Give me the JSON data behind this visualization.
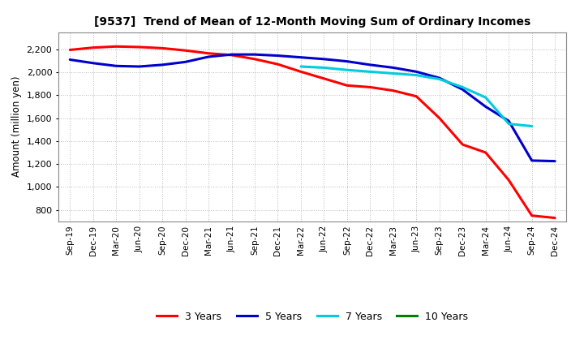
{
  "title": "[9537]  Trend of Mean of 12-Month Moving Sum of Ordinary Incomes",
  "ylabel": "Amount (million yen)",
  "background_color": "#ffffff",
  "plot_bg_color": "#ffffff",
  "grid_color": "#bbbbbb",
  "x_labels": [
    "Sep-19",
    "Dec-19",
    "Mar-20",
    "Jun-20",
    "Sep-20",
    "Dec-20",
    "Mar-21",
    "Jun-21",
    "Sep-21",
    "Dec-21",
    "Mar-22",
    "Jun-22",
    "Sep-22",
    "Dec-22",
    "Mar-23",
    "Jun-23",
    "Sep-23",
    "Dec-23",
    "Mar-24",
    "Jun-24",
    "Sep-24",
    "Dec-24"
  ],
  "ylim": [
    700,
    2350
  ],
  "yticks": [
    800,
    1000,
    1200,
    1400,
    1600,
    1800,
    2000,
    2200
  ],
  "series": {
    "3 Years": {
      "color": "#ff0000",
      "linewidth": 2.2,
      "data_x": [
        0,
        1,
        2,
        3,
        4,
        5,
        6,
        7,
        8,
        9,
        10,
        11,
        12,
        13,
        14,
        15,
        16,
        17,
        18,
        19,
        20,
        21
      ],
      "data_y": [
        2195,
        2215,
        2225,
        2220,
        2210,
        2190,
        2165,
        2150,
        2115,
        2070,
        2005,
        1945,
        1885,
        1870,
        1840,
        1790,
        1600,
        1370,
        1300,
        1060,
        750,
        730
      ]
    },
    "5 Years": {
      "color": "#0000cc",
      "linewidth": 2.2,
      "data_x": [
        0,
        1,
        2,
        3,
        4,
        5,
        6,
        7,
        8,
        9,
        10,
        11,
        12,
        13,
        14,
        15,
        16,
        17,
        18,
        19,
        20,
        21
      ],
      "data_y": [
        2110,
        2080,
        2055,
        2050,
        2065,
        2090,
        2135,
        2155,
        2155,
        2145,
        2130,
        2115,
        2095,
        2065,
        2040,
        2005,
        1950,
        1850,
        1700,
        1575,
        1230,
        1225
      ]
    },
    "7 Years": {
      "color": "#00ccdd",
      "linewidth": 2.2,
      "data_x": [
        10,
        11,
        12,
        13,
        14,
        15,
        16,
        17,
        18,
        19,
        20
      ],
      "data_y": [
        2050,
        2040,
        2020,
        2005,
        1990,
        1975,
        1940,
        1870,
        1780,
        1550,
        1530
      ]
    },
    "10 Years": {
      "color": "#008000",
      "linewidth": 2.2,
      "data_x": [],
      "data_y": []
    }
  },
  "legend": {
    "labels": [
      "3 Years",
      "5 Years",
      "7 Years",
      "10 Years"
    ],
    "colors": [
      "#ff0000",
      "#0000cc",
      "#00ccdd",
      "#008000"
    ]
  }
}
